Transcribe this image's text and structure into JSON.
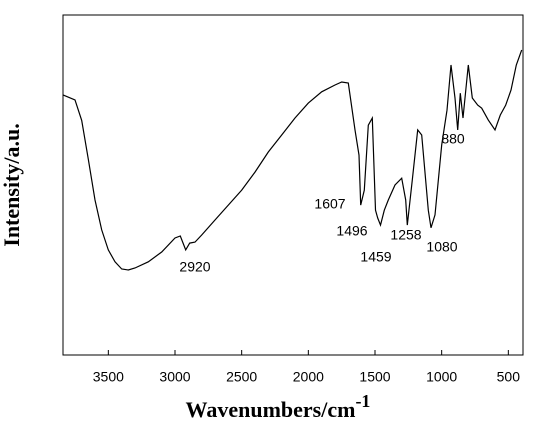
{
  "chart_data": {
    "type": "line",
    "x_label": {
      "text": "Wavenumbers/cm",
      "superscript": "-1"
    },
    "y_label": "Intensity/a.u.",
    "xlim": [
      3840,
      390
    ],
    "xticks": [
      3500,
      3000,
      2500,
      2000,
      1500,
      1000,
      500
    ],
    "ylim": [
      0,
      100
    ],
    "series": [
      {
        "color": "#000000",
        "x": [
          3840,
          3750,
          3700,
          3650,
          3600,
          3550,
          3500,
          3450,
          3400,
          3350,
          3300,
          3200,
          3100,
          3000,
          2960,
          2920,
          2890,
          2850,
          2800,
          2700,
          2600,
          2500,
          2400,
          2300,
          2200,
          2100,
          2000,
          1900,
          1800,
          1750,
          1700,
          1650,
          1620,
          1607,
          1580,
          1550,
          1520,
          1496,
          1480,
          1459,
          1430,
          1400,
          1350,
          1300,
          1270,
          1258,
          1220,
          1180,
          1150,
          1100,
          1080,
          1050,
          1000,
          960,
          930,
          900,
          880,
          860,
          840,
          800,
          770,
          730,
          700,
          650,
          600,
          560,
          520,
          480,
          440,
          400
        ],
        "values": [
          76.5,
          75,
          69,
          57.6,
          45.6,
          36.8,
          30.9,
          27.4,
          25.3,
          25,
          25.6,
          27.4,
          30.3,
          34.4,
          35,
          30.9,
          32.9,
          33.2,
          35.3,
          39.7,
          44.1,
          48.5,
          53.8,
          59.7,
          64.7,
          69.7,
          74.1,
          77.4,
          79.4,
          80.3,
          80,
          66.2,
          58.8,
          44.1,
          48.5,
          67.6,
          69.7,
          42.6,
          40.3,
          38.2,
          42.6,
          45.6,
          50,
          52,
          45.6,
          38.2,
          51.5,
          66.2,
          64.7,
          42.6,
          37.4,
          41.2,
          61.8,
          72,
          85.3,
          75.6,
          66.2,
          77,
          69.7,
          85.3,
          75.6,
          73.5,
          72.6,
          69.1,
          66.2,
          70.6,
          73.5,
          77.9,
          85.3,
          89.7
        ]
      }
    ],
    "annotations": [
      "2920",
      "1607",
      "1496",
      "1459",
      "1258",
      "1080",
      "880"
    ]
  }
}
